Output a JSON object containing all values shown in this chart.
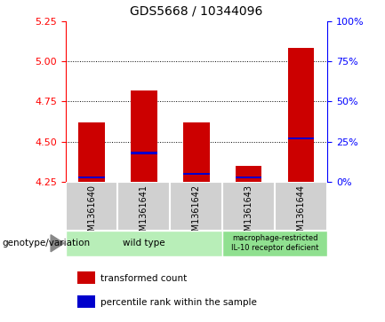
{
  "title": "GDS5668 / 10344096",
  "samples": [
    "GSM1361640",
    "GSM1361641",
    "GSM1361642",
    "GSM1361643",
    "GSM1361644"
  ],
  "transformed_count": [
    4.62,
    4.82,
    4.62,
    4.35,
    5.08
  ],
  "percentile_rank": [
    3,
    18,
    5,
    3,
    27
  ],
  "ylim_left": [
    4.25,
    5.25
  ],
  "ylim_right": [
    0,
    100
  ],
  "yticks_left": [
    4.25,
    4.5,
    4.75,
    5.0,
    5.25
  ],
  "yticks_right": [
    0,
    25,
    50,
    75,
    100
  ],
  "bar_color": "#cc0000",
  "percentile_color": "#0000cc",
  "bar_base": 4.25,
  "bar_width": 0.5,
  "grid_yticks": [
    4.5,
    4.75,
    5.0
  ],
  "group_labels": [
    "wild type",
    "macrophage-restricted\nIL-10 receptor deficient"
  ],
  "group_colors": [
    "#b8eeb8",
    "#90e090"
  ],
  "legend_items": [
    {
      "label": "transformed count",
      "color": "#cc0000"
    },
    {
      "label": "percentile rank within the sample",
      "color": "#0000cc"
    }
  ],
  "genotype_label": "genotype/variation",
  "plot_bg_color": "#ffffff",
  "sample_area_color": "#d0d0d0",
  "title_fontsize": 10,
  "tick_fontsize": 8,
  "sample_fontsize": 7,
  "legend_fontsize": 7.5,
  "group_fontsize": 7.5
}
